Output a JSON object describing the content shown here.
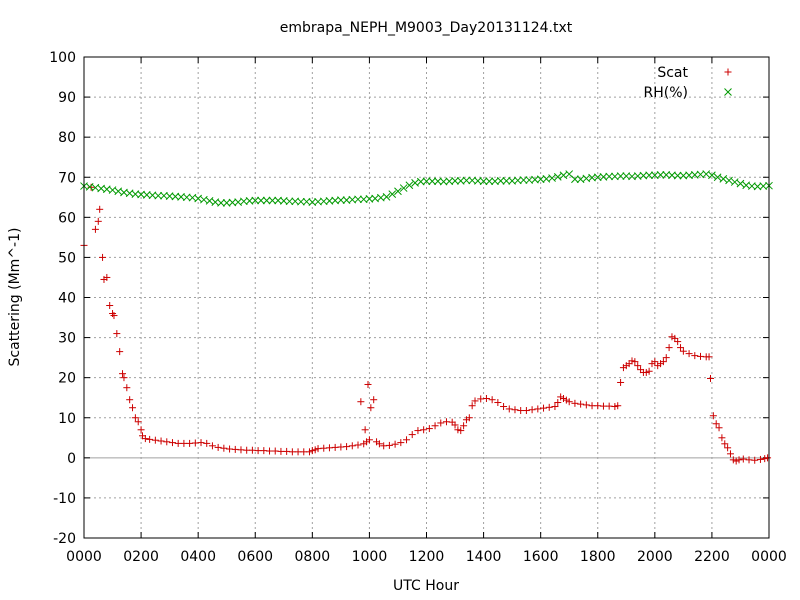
{
  "chart_data": {
    "type": "scatter",
    "title": "embrapa_NEPH_M9003_Day20131124.txt",
    "xlabel": "UTC Hour",
    "ylabel": "Scattering (Mm^-1)",
    "xlim": [
      0,
      24
    ],
    "ylim": [
      -20,
      100
    ],
    "x_ticks": [
      0,
      2,
      4,
      6,
      8,
      10,
      12,
      14,
      16,
      18,
      20,
      22,
      24
    ],
    "x_tick_labels": [
      "0000",
      "0200",
      "0400",
      "0600",
      "0800",
      "1000",
      "1200",
      "1400",
      "1600",
      "1800",
      "2000",
      "2200",
      "0000"
    ],
    "y_ticks": [
      -20,
      -10,
      0,
      10,
      20,
      30,
      40,
      50,
      60,
      70,
      80,
      90,
      100
    ],
    "grid": true,
    "legend_position": "top-right",
    "series": [
      {
        "name": "Scat",
        "marker": "plus",
        "color": "#cc0000",
        "points": [
          [
            0.0,
            53
          ],
          [
            0.25,
            67.5
          ],
          [
            0.4,
            57
          ],
          [
            0.5,
            59
          ],
          [
            0.55,
            62
          ],
          [
            0.65,
            50
          ],
          [
            0.7,
            44.5
          ],
          [
            0.8,
            45
          ],
          [
            0.9,
            38
          ],
          [
            1.0,
            36
          ],
          [
            1.05,
            35.5
          ],
          [
            1.15,
            31
          ],
          [
            1.25,
            26.5
          ],
          [
            1.35,
            21
          ],
          [
            1.4,
            20
          ],
          [
            1.5,
            17.5
          ],
          [
            1.6,
            14.5
          ],
          [
            1.7,
            12.5
          ],
          [
            1.8,
            10
          ],
          [
            1.9,
            9
          ],
          [
            2.0,
            7
          ],
          [
            2.05,
            5.5
          ],
          [
            2.15,
            4.8
          ],
          [
            2.3,
            4.6
          ],
          [
            2.5,
            4.4
          ],
          [
            2.7,
            4.2
          ],
          [
            2.9,
            4
          ],
          [
            3.1,
            3.8
          ],
          [
            3.3,
            3.6
          ],
          [
            3.5,
            3.6
          ],
          [
            3.7,
            3.6
          ],
          [
            3.9,
            3.7
          ],
          [
            4.1,
            3.8
          ],
          [
            4.3,
            3.6
          ],
          [
            4.5,
            3
          ],
          [
            4.7,
            2.6
          ],
          [
            4.9,
            2.4
          ],
          [
            5.1,
            2.2
          ],
          [
            5.3,
            2.1
          ],
          [
            5.5,
            2
          ],
          [
            5.7,
            1.9
          ],
          [
            5.9,
            1.9
          ],
          [
            6.1,
            1.8
          ],
          [
            6.3,
            1.8
          ],
          [
            6.5,
            1.7
          ],
          [
            6.7,
            1.7
          ],
          [
            6.9,
            1.6
          ],
          [
            7.1,
            1.6
          ],
          [
            7.3,
            1.5
          ],
          [
            7.5,
            1.5
          ],
          [
            7.7,
            1.5
          ],
          [
            7.9,
            1.5
          ],
          [
            8.0,
            1.8
          ],
          [
            8.1,
            2
          ],
          [
            8.2,
            2.3
          ],
          [
            8.4,
            2.4
          ],
          [
            8.6,
            2.5
          ],
          [
            8.8,
            2.6
          ],
          [
            9.0,
            2.7
          ],
          [
            9.2,
            2.8
          ],
          [
            9.4,
            3
          ],
          [
            9.6,
            3.2
          ],
          [
            9.8,
            3.5
          ],
          [
            9.9,
            4
          ],
          [
            10.0,
            4.5
          ],
          [
            9.7,
            14
          ],
          [
            9.85,
            7
          ],
          [
            9.95,
            18.3
          ],
          [
            10.05,
            12.5
          ],
          [
            10.15,
            14.5
          ],
          [
            10.25,
            4
          ],
          [
            10.35,
            3.5
          ],
          [
            10.5,
            3
          ],
          [
            10.7,
            3.1
          ],
          [
            10.9,
            3.4
          ],
          [
            11.1,
            3.8
          ],
          [
            11.3,
            4.5
          ],
          [
            11.5,
            5.8
          ],
          [
            11.7,
            6.8
          ],
          [
            11.9,
            7
          ],
          [
            12.1,
            7.3
          ],
          [
            12.3,
            8
          ],
          [
            12.5,
            8.7
          ],
          [
            12.7,
            9
          ],
          [
            12.9,
            8.9
          ],
          [
            13.0,
            8.2
          ],
          [
            13.1,
            7
          ],
          [
            13.2,
            6.8
          ],
          [
            13.3,
            8
          ],
          [
            13.4,
            9.5
          ],
          [
            13.5,
            10
          ],
          [
            13.6,
            13
          ],
          [
            13.7,
            14.2
          ],
          [
            13.9,
            14.7
          ],
          [
            14.1,
            14.8
          ],
          [
            14.3,
            14.5
          ],
          [
            14.5,
            13.8
          ],
          [
            14.7,
            12.8
          ],
          [
            14.9,
            12.2
          ],
          [
            15.1,
            12
          ],
          [
            15.3,
            11.8
          ],
          [
            15.5,
            11.8
          ],
          [
            15.7,
            12
          ],
          [
            15.9,
            12.2
          ],
          [
            16.1,
            12.4
          ],
          [
            16.3,
            12.6
          ],
          [
            16.5,
            12.8
          ],
          [
            16.6,
            13.8
          ],
          [
            16.7,
            15.2
          ],
          [
            16.8,
            14.8
          ],
          [
            16.9,
            14.4
          ],
          [
            17.0,
            14
          ],
          [
            17.2,
            13.6
          ],
          [
            17.4,
            13.4
          ],
          [
            17.6,
            13.2
          ],
          [
            17.8,
            13
          ],
          [
            18.0,
            13
          ],
          [
            18.2,
            12.9
          ],
          [
            18.4,
            12.9
          ],
          [
            18.6,
            12.8
          ],
          [
            18.7,
            13
          ],
          [
            18.8,
            18.8
          ],
          [
            18.9,
            22.5
          ],
          [
            19.0,
            23
          ],
          [
            19.1,
            23.5
          ],
          [
            19.2,
            24.2
          ],
          [
            19.3,
            24
          ],
          [
            19.4,
            23
          ],
          [
            19.5,
            22
          ],
          [
            19.6,
            21.3
          ],
          [
            19.7,
            21.3
          ],
          [
            19.8,
            21.6
          ],
          [
            19.9,
            23.5
          ],
          [
            20.0,
            24
          ],
          [
            20.1,
            23
          ],
          [
            20.2,
            23.5
          ],
          [
            20.3,
            24
          ],
          [
            20.4,
            25
          ],
          [
            20.5,
            27.5
          ],
          [
            20.6,
            30.2
          ],
          [
            20.7,
            29.8
          ],
          [
            20.8,
            29
          ],
          [
            20.9,
            27.5
          ],
          [
            21.0,
            26.6
          ],
          [
            21.2,
            26
          ],
          [
            21.4,
            25.5
          ],
          [
            21.6,
            25.3
          ],
          [
            21.8,
            25.2
          ],
          [
            21.9,
            25.2
          ],
          [
            21.95,
            19.8
          ],
          [
            22.05,
            10.5
          ],
          [
            22.15,
            8.5
          ],
          [
            22.25,
            7.5
          ],
          [
            22.35,
            5
          ],
          [
            22.45,
            3.5
          ],
          [
            22.55,
            2.5
          ],
          [
            22.65,
            1
          ],
          [
            22.75,
            -0.5
          ],
          [
            22.85,
            -0.8
          ],
          [
            22.95,
            -0.5
          ],
          [
            23.1,
            -0.3
          ],
          [
            23.3,
            -0.5
          ],
          [
            23.5,
            -0.6
          ],
          [
            23.7,
            -0.4
          ],
          [
            23.85,
            -0.2
          ],
          [
            23.95,
            0
          ]
        ]
      },
      {
        "name": "RH(%)",
        "marker": "x",
        "color": "#009900",
        "points": [
          [
            0.0,
            67.8
          ],
          [
            0.2,
            67.6
          ],
          [
            0.4,
            67.4
          ],
          [
            0.6,
            67.2
          ],
          [
            0.8,
            67
          ],
          [
            1.0,
            66.8
          ],
          [
            1.2,
            66.5
          ],
          [
            1.4,
            66.2
          ],
          [
            1.6,
            66
          ],
          [
            1.8,
            65.8
          ],
          [
            2.0,
            65.7
          ],
          [
            2.2,
            65.6
          ],
          [
            2.4,
            65.5
          ],
          [
            2.6,
            65.4
          ],
          [
            2.8,
            65.4
          ],
          [
            3.0,
            65.3
          ],
          [
            3.2,
            65.2
          ],
          [
            3.4,
            65.1
          ],
          [
            3.6,
            65
          ],
          [
            3.8,
            64.9
          ],
          [
            4.0,
            64.7
          ],
          [
            4.2,
            64.4
          ],
          [
            4.4,
            64.1
          ],
          [
            4.6,
            63.8
          ],
          [
            4.8,
            63.6
          ],
          [
            5.0,
            63.6
          ],
          [
            5.2,
            63.7
          ],
          [
            5.4,
            63.8
          ],
          [
            5.6,
            64
          ],
          [
            5.8,
            64.1
          ],
          [
            6.0,
            64.2
          ],
          [
            6.2,
            64.2
          ],
          [
            6.4,
            64.2
          ],
          [
            6.6,
            64.2
          ],
          [
            6.8,
            64.2
          ],
          [
            7.0,
            64.1
          ],
          [
            7.2,
            64
          ],
          [
            7.4,
            64
          ],
          [
            7.6,
            63.9
          ],
          [
            7.8,
            63.9
          ],
          [
            8.0,
            63.8
          ],
          [
            8.2,
            63.9
          ],
          [
            8.4,
            64
          ],
          [
            8.6,
            64.1
          ],
          [
            8.8,
            64.2
          ],
          [
            9.0,
            64.3
          ],
          [
            9.2,
            64.3
          ],
          [
            9.4,
            64.4
          ],
          [
            9.6,
            64.5
          ],
          [
            9.8,
            64.5
          ],
          [
            10.0,
            64.6
          ],
          [
            10.2,
            64.7
          ],
          [
            10.4,
            64.9
          ],
          [
            10.6,
            65.1
          ],
          [
            10.8,
            65.8
          ],
          [
            11.0,
            66.5
          ],
          [
            11.2,
            67.3
          ],
          [
            11.4,
            68
          ],
          [
            11.6,
            68.6
          ],
          [
            11.8,
            68.9
          ],
          [
            12.0,
            69
          ],
          [
            12.2,
            69
          ],
          [
            12.4,
            69
          ],
          [
            12.6,
            68.9
          ],
          [
            12.8,
            69
          ],
          [
            13.0,
            69.1
          ],
          [
            13.2,
            69.1
          ],
          [
            13.4,
            69.2
          ],
          [
            13.6,
            69.2
          ],
          [
            13.8,
            69.1
          ],
          [
            14.0,
            69
          ],
          [
            14.2,
            69
          ],
          [
            14.4,
            69
          ],
          [
            14.6,
            69.1
          ],
          [
            14.8,
            69.1
          ],
          [
            15.0,
            69.1
          ],
          [
            15.2,
            69.2
          ],
          [
            15.4,
            69.3
          ],
          [
            15.6,
            69.3
          ],
          [
            15.8,
            69.4
          ],
          [
            16.0,
            69.5
          ],
          [
            16.2,
            69.6
          ],
          [
            16.4,
            69.8
          ],
          [
            16.6,
            70.1
          ],
          [
            16.8,
            70.5
          ],
          [
            17.0,
            70.8
          ],
          [
            17.2,
            69.5
          ],
          [
            17.4,
            69.5
          ],
          [
            17.6,
            69.7
          ],
          [
            17.8,
            69.9
          ],
          [
            18.0,
            70
          ],
          [
            18.2,
            70.1
          ],
          [
            18.4,
            70.2
          ],
          [
            18.6,
            70.2
          ],
          [
            18.8,
            70.3
          ],
          [
            19.0,
            70.3
          ],
          [
            19.2,
            70.2
          ],
          [
            19.4,
            70.3
          ],
          [
            19.6,
            70.4
          ],
          [
            19.8,
            70.5
          ],
          [
            20.0,
            70.5
          ],
          [
            20.2,
            70.6
          ],
          [
            20.4,
            70.6
          ],
          [
            20.6,
            70.5
          ],
          [
            20.8,
            70.4
          ],
          [
            21.0,
            70.4
          ],
          [
            21.2,
            70.5
          ],
          [
            21.4,
            70.6
          ],
          [
            21.6,
            70.7
          ],
          [
            21.8,
            70.8
          ],
          [
            22.0,
            70.5
          ],
          [
            22.2,
            70
          ],
          [
            22.4,
            69.6
          ],
          [
            22.6,
            69.2
          ],
          [
            22.8,
            68.8
          ],
          [
            23.0,
            68.4
          ],
          [
            23.2,
            68
          ],
          [
            23.4,
            67.8
          ],
          [
            23.6,
            67.7
          ],
          [
            23.8,
            67.8
          ],
          [
            24.0,
            67.9
          ]
        ]
      }
    ]
  }
}
